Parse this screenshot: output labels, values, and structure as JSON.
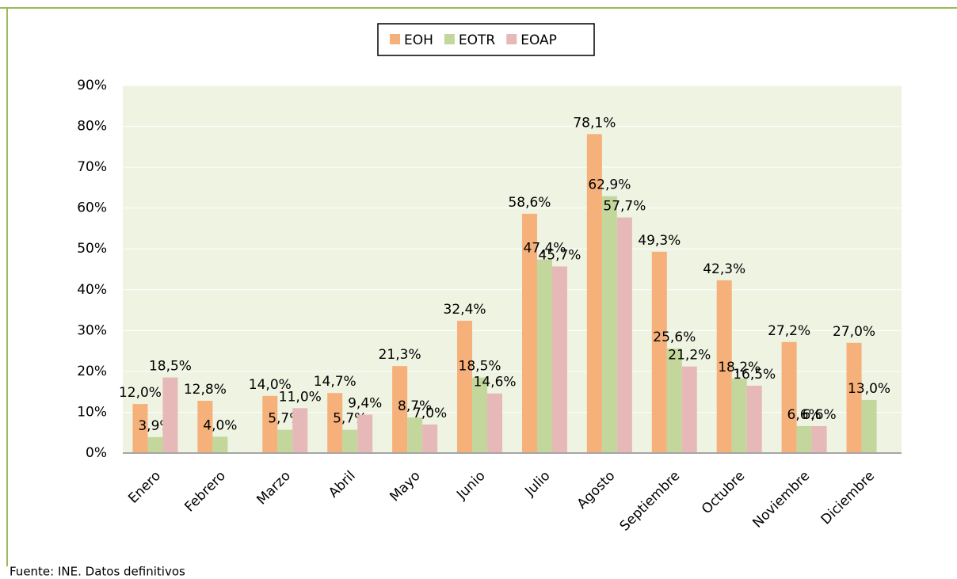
{
  "chart_data": {
    "type": "bar",
    "categories": [
      "Enero",
      "Febrero",
      "Marzo",
      "Abril",
      "Mayo",
      "Junio",
      "Julio",
      "Agosto",
      "Septiembre",
      "Octubre",
      "Noviembre",
      "Diciembre"
    ],
    "series": [
      {
        "name": "EOH",
        "color": "#f6b07a",
        "values": [
          12.0,
          12.8,
          14.0,
          14.7,
          21.3,
          32.4,
          58.6,
          78.1,
          49.3,
          42.3,
          27.2,
          27.0
        ],
        "value_labels": [
          "12,0%",
          "12,8%",
          "14,0%",
          "14,7%",
          "21,3%",
          "32,4%",
          "58,6%",
          "78,1%",
          "49,3%",
          "42,3%",
          "27,2%",
          "27,0%"
        ]
      },
      {
        "name": "EOTR",
        "color": "#c3d69b",
        "values": [
          3.9,
          4.0,
          5.7,
          5.7,
          8.7,
          18.5,
          47.4,
          62.9,
          25.6,
          18.2,
          6.6,
          13.0
        ],
        "value_labels": [
          "3,9%",
          "4,0%",
          "5,7%",
          "5,7%",
          "8,7%",
          "18,5%",
          "47,4%",
          "62,9%",
          "25,6%",
          "18,2%",
          "6,6%",
          "13,0%"
        ]
      },
      {
        "name": "EOAP",
        "color": "#e6b9b8",
        "values": [
          18.5,
          null,
          11.0,
          9.4,
          7.0,
          14.6,
          45.7,
          57.7,
          21.2,
          16.5,
          6.6,
          null
        ],
        "value_labels": [
          "18,5%",
          null,
          "11,0%",
          "9,4%",
          "7,0%",
          "14,6%",
          "45,7%",
          "57,7%",
          "21,2%",
          "16,5%",
          "6,6%",
          null
        ]
      }
    ],
    "ylim": [
      0,
      90
    ],
    "yticks": [
      {
        "value": 0,
        "label": "0%"
      },
      {
        "value": 10,
        "label": "10%"
      },
      {
        "value": 20,
        "label": "20%"
      },
      {
        "value": 30,
        "label": "30%"
      },
      {
        "value": 40,
        "label": "40%"
      },
      {
        "value": 50,
        "label": "50%"
      },
      {
        "value": 60,
        "label": "60%"
      },
      {
        "value": 70,
        "label": "70%"
      },
      {
        "value": 80,
        "label": "80%"
      },
      {
        "value": 90,
        "label": "90%"
      }
    ],
    "grid": true,
    "legend": "top",
    "source": "Fuente: INE. Datos definitivos"
  }
}
